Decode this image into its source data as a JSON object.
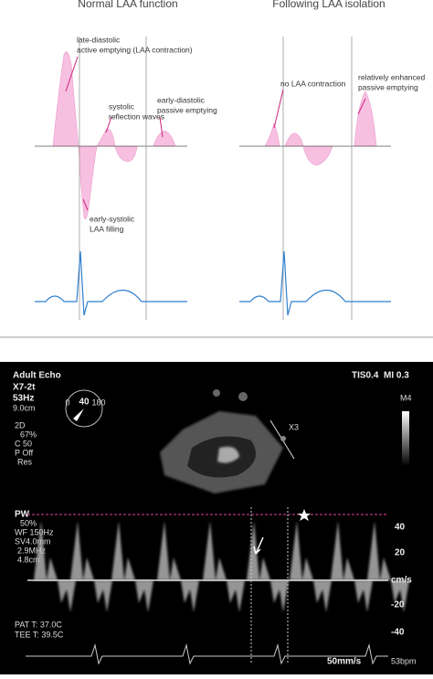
{
  "diagram": {
    "panels": [
      {
        "title": "Normal LAA function",
        "annotations": [
          {
            "lines": [
              "late-diastolic",
              "active emptying  (LAA contraction)"
            ]
          },
          {
            "lines": [
              "systolic",
              "reflection waves"
            ]
          },
          {
            "lines": [
              "early-diastolic",
              "passive emptying"
            ]
          },
          {
            "lines": [
              "early-systolic",
              "LAA filling"
            ]
          }
        ]
      },
      {
        "title": "Following LAA isolation",
        "annotations": [
          {
            "lines": [
              "no LAA contraction"
            ]
          },
          {
            "lines": [
              "relatively enhanced",
              "passive emptying"
            ]
          }
        ]
      }
    ]
  },
  "echo": {
    "top_left": [
      "Adult Echo",
      "X7-2t",
      "53Hz",
      "9.0cm"
    ],
    "top_right": [
      "TIS0.4",
      "MI 0.3"
    ],
    "gray_map": "M4",
    "angle": {
      "min": "0",
      "value": "40",
      "max": "180"
    },
    "plane": "X3",
    "mode_2d": [
      "2D",
      "67%",
      "C 50",
      "P Off",
      "Res"
    ],
    "mode_pw": [
      "PW",
      "50%",
      "WF 150Hz",
      "SV4.0mm",
      "2.9MHz",
      "4.8cm"
    ],
    "scale": [
      "40",
      "20",
      "cm/s",
      "-20",
      "-40"
    ],
    "temps": [
      "PAT T: 37.0C",
      "TEE T: 39.5C"
    ],
    "sweep": "50mm/s",
    "heart_rate": "53bpm"
  }
}
